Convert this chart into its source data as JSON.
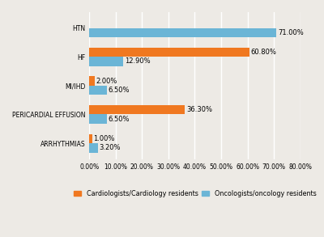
{
  "categories": [
    "HTN",
    "HF",
    "MI/IHD",
    "PERICARDIAL EFFUSION",
    "ARRHYTHMIAS"
  ],
  "cardiologists": [
    0.0,
    60.8,
    2.0,
    36.3,
    1.0
  ],
  "oncologists": [
    71.0,
    12.9,
    6.5,
    6.5,
    3.2
  ],
  "cardiologist_color": "#F07820",
  "oncologist_color": "#6BB5D6",
  "bar_height": 0.32,
  "xlim": [
    0,
    80
  ],
  "xticks": [
    0,
    10,
    20,
    30,
    40,
    50,
    60,
    70,
    80
  ],
  "xtick_labels": [
    "0.00%",
    "10.00%",
    "20.00%",
    "30.00%",
    "40.00%",
    "50.00%",
    "60.00%",
    "70.00%",
    "80.00%"
  ],
  "legend_cardio": "Cardiologists/Cardiology residents",
  "legend_onco": "Oncologists/oncology residents",
  "bg_color": "#EDEAE5",
  "grid_color": "#FFFFFF",
  "label_fontsize": 6.0,
  "tick_fontsize": 5.5,
  "legend_fontsize": 5.8
}
